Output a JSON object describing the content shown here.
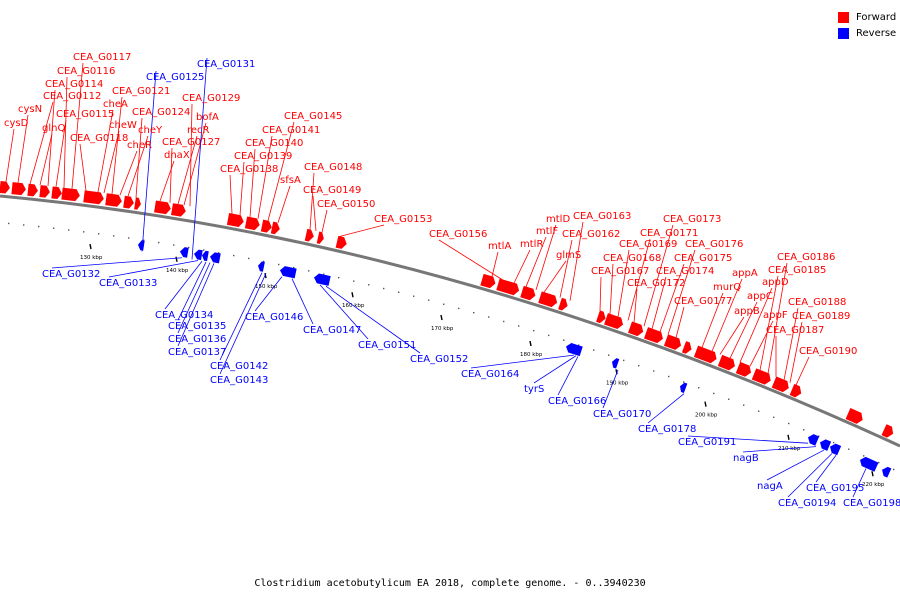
{
  "legend": [
    {
      "label": "Forward",
      "color": "#ff0000"
    },
    {
      "label": "Reverse",
      "color": "#0000ff"
    }
  ],
  "caption": "Clostridium acetobutylicum EA 2018, complete genome. - 0..3940230",
  "ticks": [
    "130 kbp",
    "140 kbp",
    "150 kbp",
    "160 kbp",
    "170 kbp",
    "180 kbp",
    "190 kbp",
    "200 kbp",
    "210 kbp",
    "220 kbp"
  ],
  "forward_labels": [
    "cysD",
    "cysN",
    "CEA_G0112",
    "glnQ",
    "CEA_G0114",
    "CEA_G0115",
    "CEA_G0116",
    "CEA_G0117",
    "CEA_G0118",
    "cheA",
    "cheW",
    "CEA_G0121",
    "cheR",
    "cheY",
    "CEA_G0124",
    "dnaX",
    "CEA_G0127",
    "recR",
    "bofA",
    "CEA_G0129",
    "CEA_G0138",
    "CEA_G0139",
    "CEA_G0140",
    "CEA_G0141",
    "CEA_G0145",
    "sfsA",
    "CEA_G0148",
    "CEA_G0149",
    "CEA_G0150",
    "CEA_G0153",
    "mtlA",
    "CEA_G0156",
    "mtlR",
    "mtlF",
    "mtlD",
    "glmS",
    "CEA_G0162",
    "CEA_G0163",
    "CEA_G0167",
    "CEA_G0168",
    "CEA_G0169",
    "CEA_G0171",
    "CEA_G0172",
    "CEA_G0173",
    "CEA_G0174",
    "CEA_G0175",
    "CEA_G0176",
    "CEA_G0177",
    "murQ",
    "appA",
    "appB",
    "appC",
    "appD",
    "appF",
    "CEA_G0185",
    "CEA_G0186",
    "CEA_G0187",
    "CEA_G0188",
    "CEA_G0189",
    "CEA_G0190"
  ],
  "reverse_labels": [
    "CEA_G0125",
    "CEA_G0131",
    "CEA_G0132",
    "CEA_G0133",
    "CEA_G0134",
    "CEA_G0135",
    "CEA_G0136",
    "CEA_G0137",
    "CEA_G0142",
    "CEA_G0143",
    "CEA_G0146",
    "CEA_G0147",
    "CEA_G0151",
    "CEA_G0152",
    "CEA_G0164",
    "tyrS",
    "CEA_G0166",
    "CEA_G0170",
    "CEA_G0178",
    "CEA_G0191",
    "nagB",
    "nagA",
    "CEA_G0194",
    "CEA_G0195",
    "CEA_G0198"
  ]
}
